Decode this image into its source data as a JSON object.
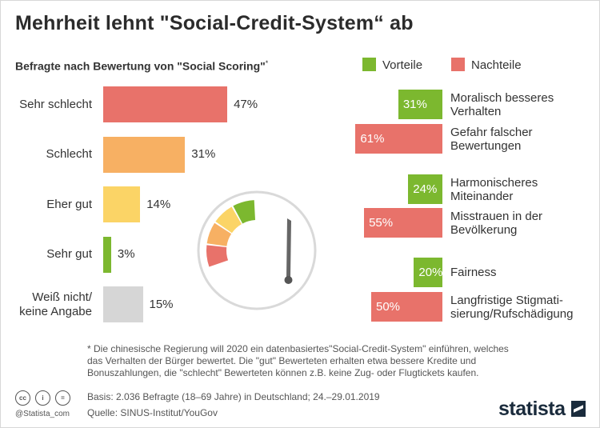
{
  "title": "Mehrheit lehnt \"Social-Credit-System“ ab",
  "subtitle": "Befragte nach Bewertung von \"Social Scoring\"",
  "subtitle_mark": "*",
  "legend": {
    "pro": "Vorteile",
    "con": "Nachteile"
  },
  "colors": {
    "pro": "#7cb82f",
    "con": "#e8726a",
    "sehr_schlecht": "#e8726a",
    "schlecht": "#f7b063",
    "eher_gut": "#fbd466",
    "sehr_gut": "#7cb82f",
    "unknown": "#d6d6d6"
  },
  "chart_data": [
    {
      "type": "bar",
      "orientation": "horizontal",
      "categories": [
        "Sehr schlecht",
        "Schlecht",
        "Eher gut",
        "Sehr gut",
        "Weiß nicht/ keine Angabe"
      ],
      "values": [
        47,
        31,
        14,
        3,
        15
      ],
      "value_labels": [
        "47%",
        "31%",
        "14%",
        "3%",
        "15%"
      ],
      "unit": "%",
      "xlim": [
        0,
        100
      ]
    },
    {
      "type": "bar",
      "orientation": "horizontal",
      "categories": [
        "Moralisch besseres Verhalten",
        "Gefahr falscher Bewertungen",
        "Harmonischeres Miteinander",
        "Misstrauen in der Bevölkerung",
        "Fairness",
        "Langfristige Stigmati- sierung/Rufschädigung"
      ],
      "category_lines": [
        [
          "Moralisch besseres",
          "Verhalten"
        ],
        [
          "Gefahr falscher",
          "Bewertungen"
        ],
        [
          "Harmonischeres",
          "Miteinander"
        ],
        [
          "Misstrauen in der",
          "Bevölkerung"
        ],
        [
          "Fairness"
        ],
        [
          "Langfristige Stigmati-",
          "sierung/Rufschädigung"
        ]
      ],
      "series_type": [
        "pro",
        "con",
        "pro",
        "con",
        "pro",
        "con"
      ],
      "values": [
        31,
        61,
        24,
        55,
        20,
        50
      ],
      "value_labels": [
        "31%",
        "61%",
        "24%",
        "55%",
        "20%",
        "50%"
      ],
      "unit": "%",
      "legend": [
        "Vorteile",
        "Nachteile"
      ],
      "legend_position": "top"
    }
  ],
  "footnote": "* Die chinesische Regierung will 2020 ein datenbasiertes\"Social-Credit-System\" einführen, welches das Verhalten der Bürger bewertet. Die \"gut\" Bewerteten erhalten etwa bessere Kredite und Bonuszahlungen, die \"schlecht\" Bewerteten können z.B. keine Zug- oder Flugtickets kaufen.",
  "basis": "Basis: 2.036 Befragte (18–69 Jahre) in Deutschland; 24.–29.01.2019",
  "source": "Quelle: SINUS-Institut/YouGov",
  "handle": "@Statista_com",
  "brand": "statista",
  "license_icons": [
    "cc-icon",
    "by-icon",
    "nd-icon"
  ]
}
